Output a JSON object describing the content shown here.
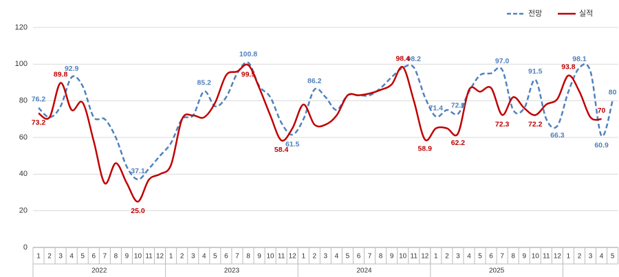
{
  "chart_data": {
    "type": "line",
    "categories": [
      "1",
      "2",
      "3",
      "4",
      "5",
      "6",
      "7",
      "8",
      "9",
      "10",
      "11",
      "12",
      "1",
      "2",
      "3",
      "4",
      "5",
      "6",
      "7",
      "8",
      "9",
      "10",
      "11",
      "12",
      "1",
      "2",
      "3",
      "4",
      "5",
      "6",
      "7",
      "8",
      "9",
      "10",
      "11",
      "12",
      "1",
      "2",
      "3",
      "4",
      "5",
      "6",
      "7",
      "8",
      "9",
      "10",
      "11",
      "12",
      "1",
      "2",
      "3",
      "4",
      "5"
    ],
    "x_groups": [
      "2022",
      "2023",
      "2024",
      "2025"
    ],
    "series": [
      {
        "name": "전망",
        "color": "#4f81bd",
        "dashed": true,
        "values": [
          76.2,
          71,
          77,
          92.9,
          88,
          71,
          70,
          60,
          44,
          37.1,
          43,
          50,
          57,
          70,
          72,
          85.2,
          77,
          82,
          95,
          100.8,
          88,
          82,
          68,
          61.5,
          70,
          86.2,
          82,
          75,
          83,
          83,
          83,
          87,
          93,
          98,
          98.2,
          82,
          71.4,
          75,
          72.9,
          85,
          94,
          95,
          97,
          75,
          76,
          91.5,
          70,
          66.3,
          85,
          98.1,
          96,
          60.9,
          80
        ],
        "value_labels": [
          "76.2",
          null,
          null,
          "92.9",
          null,
          null,
          null,
          null,
          null,
          "37.1",
          null,
          null,
          null,
          null,
          null,
          "85.2",
          null,
          null,
          null,
          "100.8",
          null,
          null,
          null,
          "61.5",
          null,
          "86.2",
          null,
          null,
          null,
          null,
          null,
          null,
          null,
          null,
          "98.2",
          null,
          "71.4",
          null,
          "72.9",
          null,
          null,
          null,
          "97.0",
          null,
          null,
          "91.5",
          null,
          "66.3",
          null,
          "98.1",
          null,
          "60.9",
          "80"
        ]
      },
      {
        "name": "실적",
        "color": "#c00000",
        "dashed": false,
        "values": [
          73.2,
          71,
          89.8,
          75,
          79,
          58,
          35,
          46,
          35,
          25.0,
          37,
          40,
          45,
          70,
          72,
          71,
          79,
          94,
          96,
          99.5,
          87,
          72,
          58.4,
          65,
          78,
          67,
          67,
          72,
          83,
          83,
          84,
          86,
          89,
          98.4,
          80,
          58.9,
          65,
          65,
          62.2,
          86,
          85,
          87,
          72.3,
          82,
          76,
          72.2,
          78,
          81,
          93.8,
          85,
          71,
          70,
          null
        ],
        "value_labels": [
          "73.2",
          null,
          "89.8",
          null,
          null,
          null,
          null,
          null,
          null,
          "25.0",
          null,
          null,
          null,
          null,
          null,
          null,
          null,
          null,
          null,
          "99.5",
          null,
          null,
          "58.4",
          null,
          null,
          null,
          null,
          null,
          null,
          null,
          null,
          null,
          null,
          "98.4",
          null,
          "58.9",
          null,
          null,
          "62.2",
          null,
          null,
          null,
          "72.3",
          null,
          null,
          "72.2",
          null,
          null,
          "93.8",
          null,
          null,
          "70",
          null
        ]
      }
    ],
    "ylim": [
      0,
      120
    ],
    "yticks": [
      0,
      20,
      40,
      60,
      80,
      100,
      120
    ],
    "grid": true,
    "legend": "top-right"
  }
}
